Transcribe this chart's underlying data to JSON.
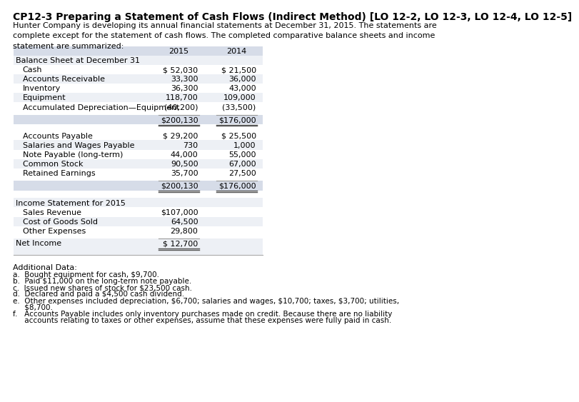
{
  "title": "CP12-3 Preparing a Statement of Cash Flows (Indirect Method) [LO 12-2, LO 12-3, LO 12-4, LO 12-5]",
  "intro_text": "Hunter Company is developing its annual financial statements at December 31, 2015. The statements are\ncomplete except for the statement of cash flows. The completed comparative balance sheets and income\nstatement are summarized:",
  "col_2015": "2015",
  "col_2014": "2014",
  "balance_sheet_header": "Balance Sheet at December 31",
  "bs_rows": [
    [
      "Cash",
      "$ 52,030",
      "$ 21,500"
    ],
    [
      "Accounts Receivable",
      "33,300",
      "36,000"
    ],
    [
      "Inventory",
      "36,300",
      "43,000"
    ],
    [
      "Equipment",
      "118,700",
      "109,000"
    ],
    [
      "Accumulated Depreciation—Equipment",
      "(40,200)",
      "(33,500)"
    ]
  ],
  "bs_total_2015": "$200,130",
  "bs_total_2014": "$176,000",
  "bs_rows2": [
    [
      "Accounts Payable",
      "$ 29,200",
      "$ 25,500"
    ],
    [
      "Salaries and Wages Payable",
      "730",
      "1,000"
    ],
    [
      "Note Payable (long-term)",
      "44,000",
      "55,000"
    ],
    [
      "Common Stock",
      "90,500",
      "67,000"
    ],
    [
      "Retained Earnings",
      "35,700",
      "27,500"
    ]
  ],
  "bs_total2_2015": "$200,130",
  "bs_total2_2014": "$176,000",
  "income_header": "Income Statement for 2015",
  "is_rows": [
    [
      "Sales Revenue",
      "$107,000",
      ""
    ],
    [
      "Cost of Goods Sold",
      "64,500",
      ""
    ],
    [
      "Other Expenses",
      "29,800",
      ""
    ]
  ],
  "net_income_label": "Net Income",
  "net_income_2015": "$ 12,700",
  "additional_data_title": "Additional Data:",
  "additional_items": [
    "a.  Bought equipment for cash, $9,700.",
    "b.  Paid $11,000 on the long-term note payable.",
    "c.  Issued new shares of stock for $23,500 cash.",
    "d.  Declared and paid a $4,500 cash dividend.",
    "e.  Other expenses included depreciation, $6,700; salaries and wages, $10,700; taxes, $3,700; utilities,\n     $8,700.",
    "f.   Accounts Payable includes only inventory purchases made on credit. Because there are no liability\n     accounts relating to taxes or other expenses, assume that these expenses were fully paid in cash."
  ],
  "text_color": "#000000",
  "blue_text": "#1f3864",
  "bg_color": "#ffffff",
  "row_light": "#edf0f5",
  "row_white": "#ffffff",
  "header_bg": "#d6dce8",
  "total_bg": "#d6dce8",
  "section_bg": "#edf0f5",
  "table_border": "#aaaaaa"
}
